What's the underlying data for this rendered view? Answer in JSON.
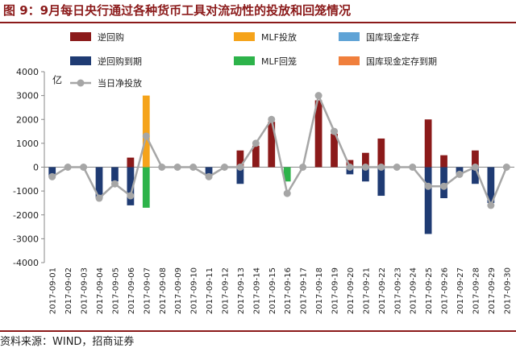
{
  "title": "图 9：9月每日央行通过各种货币工具对流动性的投放和回笼情况",
  "source": "资料来源：WIND，招商证券",
  "chart_data": {
    "type": "bar",
    "unit_label": "亿",
    "ylim": [
      -4000,
      4000
    ],
    "yticks": [
      -4000,
      -3000,
      -2000,
      -1000,
      0,
      1000,
      2000,
      3000,
      4000
    ],
    "categories": [
      "2017-09-01",
      "2017-09-02",
      "2017-09-03",
      "2017-09-04",
      "2017-09-05",
      "2017-09-06",
      "2017-09-07",
      "2017-09-08",
      "2017-09-09",
      "2017-09-10",
      "2017-09-11",
      "2017-09-12",
      "2017-09-13",
      "2017-09-14",
      "2017-09-15",
      "2017-09-16",
      "2017-09-17",
      "2017-09-18",
      "2017-09-19",
      "2017-09-20",
      "2017-09-21",
      "2017-09-22",
      "2017-09-23",
      "2017-09-24",
      "2017-09-25",
      "2017-09-26",
      "2017-09-27",
      "2017-09-28",
      "2017-09-29",
      "2017-09-30"
    ],
    "colors": {
      "reverse_repo": "#8b1a1a",
      "mlf_injection": "#f5a31a",
      "treasury_deposit": "#5fa3d6",
      "reverse_repo_maturity": "#1f3b73",
      "mlf_withdrawal": "#2db34a",
      "treasury_deposit_maturity": "#f07f3c",
      "net_injection": "#a6a6a6"
    },
    "series": [
      {
        "key": "reverse_repo",
        "name": "逆回购",
        "type": "bar",
        "values": [
          0,
          0,
          0,
          0,
          0,
          400,
          0,
          0,
          0,
          0,
          0,
          0,
          700,
          900,
          1900,
          0,
          0,
          2800,
          1400,
          300,
          600,
          1200,
          0,
          0,
          2000,
          500,
          0,
          700,
          0,
          0
        ]
      },
      {
        "key": "mlf_injection",
        "name": "MLF投放",
        "type": "bar",
        "values": [
          0,
          0,
          0,
          0,
          0,
          0,
          3000,
          0,
          0,
          0,
          0,
          0,
          0,
          0,
          0,
          0,
          0,
          0,
          0,
          0,
          0,
          0,
          0,
          0,
          0,
          0,
          0,
          0,
          0,
          0
        ]
      },
      {
        "key": "treasury_deposit",
        "name": "国库现金定存",
        "type": "bar",
        "values": [
          0,
          0,
          0,
          0,
          0,
          0,
          0,
          0,
          0,
          0,
          0,
          0,
          0,
          0,
          0,
          0,
          0,
          0,
          0,
          0,
          0,
          0,
          0,
          0,
          0,
          0,
          0,
          0,
          0,
          0
        ]
      },
      {
        "key": "reverse_repo_maturity",
        "name": "逆回购到期",
        "type": "bar",
        "values": [
          -400,
          0,
          0,
          -1300,
          -600,
          -1600,
          0,
          0,
          0,
          0,
          -300,
          0,
          -700,
          0,
          0,
          0,
          0,
          0,
          0,
          -300,
          -600,
          -1200,
          0,
          0,
          -2800,
          -1300,
          -300,
          -700,
          -1500,
          0
        ]
      },
      {
        "key": "mlf_withdrawal",
        "name": "MLF回笼",
        "type": "bar",
        "values": [
          0,
          0,
          0,
          0,
          0,
          0,
          -1700,
          0,
          0,
          0,
          0,
          0,
          0,
          0,
          0,
          -600,
          0,
          0,
          0,
          0,
          0,
          0,
          0,
          0,
          0,
          0,
          0,
          0,
          0,
          0
        ]
      },
      {
        "key": "treasury_deposit_maturity",
        "name": "国库现金定存到期",
        "type": "bar",
        "values": [
          0,
          0,
          0,
          0,
          0,
          0,
          0,
          0,
          0,
          0,
          0,
          0,
          0,
          0,
          0,
          0,
          0,
          0,
          0,
          0,
          0,
          0,
          0,
          0,
          0,
          0,
          0,
          0,
          0,
          0
        ]
      },
      {
        "key": "net_injection",
        "name": "当日净投放",
        "type": "line",
        "values": [
          -400,
          0,
          0,
          -1300,
          -700,
          -1200,
          1300,
          0,
          0,
          0,
          -400,
          0,
          0,
          1000,
          2000,
          -1100,
          0,
          3000,
          1500,
          0,
          0,
          0,
          0,
          0,
          -800,
          -800,
          -300,
          0,
          -1600,
          0
        ]
      }
    ],
    "legend": [
      [
        "reverse_repo",
        "mlf_injection",
        "treasury_deposit"
      ],
      [
        "reverse_repo_maturity",
        "mlf_withdrawal",
        "treasury_deposit_maturity"
      ],
      [
        "net_injection"
      ]
    ]
  }
}
